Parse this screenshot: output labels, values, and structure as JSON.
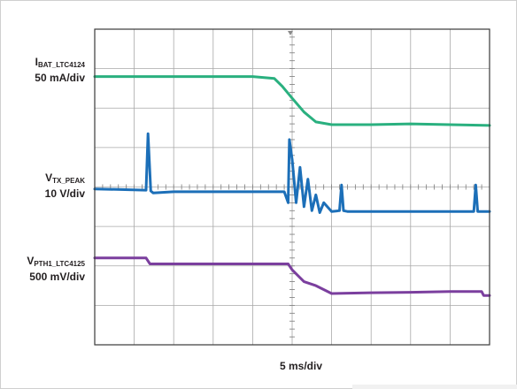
{
  "chart_data": {
    "type": "line",
    "xlabel": "5 ms/div",
    "x_divisions": 10,
    "y_divisions": 8,
    "grid": true,
    "series": [
      {
        "name_main": "I",
        "name_sub": "BAT_LTC4124",
        "scale": "50 mA/div",
        "color": "#2ab07f",
        "x": [
          0,
          4.0,
          4.55,
          4.75,
          5.0,
          5.3,
          5.6,
          6.0,
          7.0,
          8.0,
          9.0,
          10.0
        ],
        "y": [
          6.8,
          6.8,
          6.75,
          6.55,
          6.25,
          5.9,
          5.65,
          5.58,
          5.58,
          5.6,
          5.58,
          5.56
        ]
      },
      {
        "name_main": "V",
        "name_sub": "TX_PEAK",
        "scale": "10 V/div",
        "color": "#1c6fb8",
        "x": [
          0,
          1.3,
          1.35,
          1.42,
          1.48,
          2.0,
          4.8,
          4.9,
          4.93,
          5.0,
          5.1,
          5.2,
          5.3,
          5.4,
          5.5,
          5.6,
          5.7,
          5.8,
          6.0,
          6.2,
          6.25,
          6.3,
          6.4,
          7.0,
          8.0,
          9.0,
          9.6,
          9.65,
          9.7,
          10.0
        ],
        "y": [
          3.95,
          3.92,
          5.35,
          3.9,
          3.85,
          3.88,
          3.88,
          3.6,
          5.2,
          4.7,
          3.6,
          4.5,
          3.5,
          4.2,
          3.4,
          3.8,
          3.35,
          3.6,
          3.38,
          3.4,
          4.05,
          3.4,
          3.38,
          3.38,
          3.38,
          3.38,
          3.38,
          4.05,
          3.38,
          3.38
        ]
      },
      {
        "name_main": "V",
        "name_sub": "PTH1_LTC4125",
        "scale": "500 mV/div",
        "color": "#7b3f9e",
        "x": [
          0,
          1.3,
          1.4,
          2.0,
          3.0,
          4.0,
          4.9,
          5.0,
          5.3,
          5.6,
          6.0,
          7.0,
          8.0,
          9.0,
          9.8,
          9.85,
          10.0
        ],
        "y": [
          2.2,
          2.2,
          2.05,
          2.05,
          2.05,
          2.05,
          2.05,
          1.9,
          1.6,
          1.5,
          1.3,
          1.32,
          1.33,
          1.35,
          1.35,
          1.25,
          1.25
        ]
      }
    ]
  }
}
